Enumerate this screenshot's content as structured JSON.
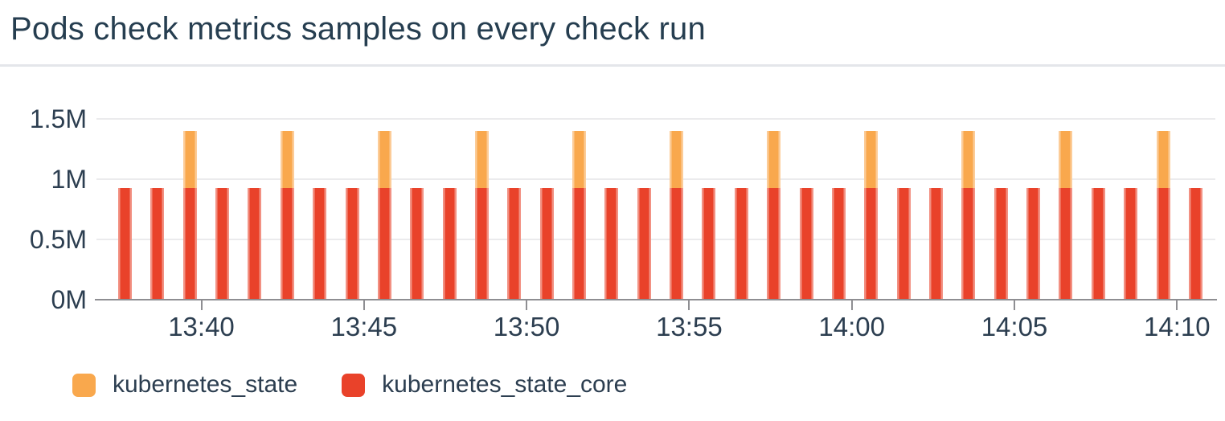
{
  "header": {
    "title": "Pods check metrics samples on every check run"
  },
  "colors": {
    "kubernetes_state": "#f9a84d",
    "kubernetes_state_core": "#e9422a",
    "grid": "#ebebed",
    "axis": "#8e8e92",
    "text": "#2c3e50"
  },
  "chart_data": {
    "type": "bar",
    "stacked": true,
    "title": "Pods check metrics samples on every check run",
    "xlabel": "",
    "ylabel": "",
    "ylim": [
      0,
      1500000
    ],
    "grid": "horizontal",
    "legend_position": "bottom-left",
    "y_ticks": [
      {
        "label": "0M",
        "value": 0
      },
      {
        "label": "0.5M",
        "value": 500000
      },
      {
        "label": "1M",
        "value": 1000000
      },
      {
        "label": "1.5M",
        "value": 1500000
      }
    ],
    "x_tick_labels": [
      "13:40",
      "13:45",
      "13:50",
      "13:55",
      "14:00",
      "14:05",
      "14:10"
    ],
    "minutes_per_x_tick": 5,
    "bar_interval_minutes": 1,
    "series": [
      {
        "name": "kubernetes_state",
        "color": "#f9a84d",
        "values": [
          0,
          0,
          470000,
          0,
          0,
          470000,
          0,
          0,
          470000,
          0,
          0,
          470000,
          0,
          0,
          470000,
          0,
          0,
          470000,
          0,
          0,
          470000,
          0,
          0,
          470000,
          0,
          0,
          470000,
          0,
          0,
          470000,
          0,
          0,
          470000,
          0
        ]
      },
      {
        "name": "kubernetes_state_core",
        "color": "#e9422a",
        "values": [
          930000,
          930000,
          930000,
          930000,
          930000,
          930000,
          930000,
          930000,
          930000,
          930000,
          930000,
          930000,
          930000,
          930000,
          930000,
          930000,
          930000,
          930000,
          930000,
          930000,
          930000,
          930000,
          930000,
          930000,
          930000,
          930000,
          930000,
          930000,
          930000,
          930000,
          930000,
          930000,
          930000,
          930000
        ]
      }
    ]
  },
  "legend": {
    "items": [
      {
        "label": "kubernetes_state",
        "color": "#f9a84d"
      },
      {
        "label": "kubernetes_state_core",
        "color": "#e9422a"
      }
    ]
  }
}
